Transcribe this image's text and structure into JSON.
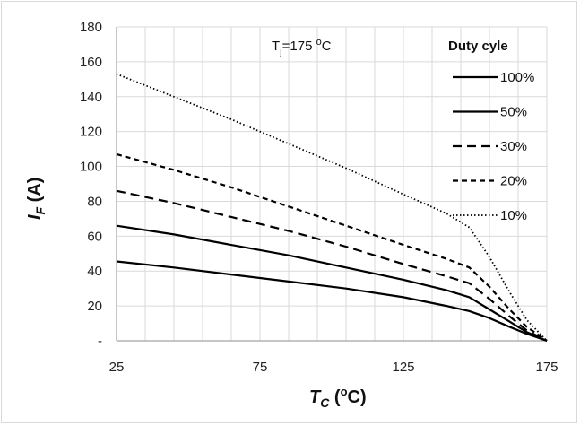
{
  "chart_data": {
    "type": "line",
    "xlim": [
      25,
      175
    ],
    "ylim": [
      0,
      180
    ],
    "x_ticks": [
      25,
      75,
      125,
      175
    ],
    "y_ticks": [
      0,
      20,
      40,
      60,
      80,
      100,
      120,
      140,
      160,
      180
    ],
    "y_tick_labels": [
      "-",
      "20",
      "40",
      "60",
      "80",
      "100",
      "120",
      "140",
      "160",
      "180"
    ],
    "grid": true,
    "x_minor_step": 10,
    "xlabel": {
      "main": "T",
      "sub": "C",
      "rest": " (",
      "sup": "o",
      "tail": "C)"
    },
    "ylabel": {
      "main": "I",
      "sub": "F",
      "rest": " (A)"
    },
    "annotation": {
      "main": "T",
      "sub": "j",
      "mid": "=175 ",
      "sup": "o",
      "tail": "C"
    },
    "legend_title": "Duty cyle",
    "legend_position": "top-right",
    "series": [
      {
        "name": "100%",
        "style": "solid",
        "x": [
          25,
          45,
          65,
          85,
          105,
          125,
          140,
          148,
          155,
          162,
          168,
          175
        ],
        "y": [
          45.5,
          42,
          38,
          34,
          30,
          25,
          20,
          17,
          13,
          8,
          4,
          0
        ]
      },
      {
        "name": "50%",
        "style": "solid",
        "x": [
          25,
          45,
          65,
          85,
          105,
          125,
          140,
          148,
          155,
          162,
          168,
          175
        ],
        "y": [
          66,
          61,
          55,
          49,
          42,
          35,
          29,
          25,
          18,
          11,
          5,
          0
        ]
      },
      {
        "name": "30%",
        "style": "dash",
        "x": [
          25,
          45,
          65,
          85,
          105,
          125,
          140,
          148,
          155,
          162,
          168,
          175
        ],
        "y": [
          86,
          79,
          71,
          63,
          54,
          44,
          37,
          33,
          24,
          14,
          6,
          0
        ]
      },
      {
        "name": "20%",
        "style": "shortdash",
        "x": [
          25,
          45,
          65,
          85,
          105,
          125,
          140,
          148,
          155,
          162,
          168,
          175
        ],
        "y": [
          107,
          98,
          88,
          77,
          66,
          55,
          47,
          42,
          31,
          18,
          8,
          0
        ]
      },
      {
        "name": "10%",
        "style": "dot",
        "x": [
          25,
          45,
          65,
          85,
          105,
          125,
          140,
          148,
          155,
          162,
          168,
          175
        ],
        "y": [
          153,
          140,
          127,
          113,
          99,
          84,
          73,
          65,
          48,
          28,
          12,
          0
        ]
      }
    ]
  }
}
